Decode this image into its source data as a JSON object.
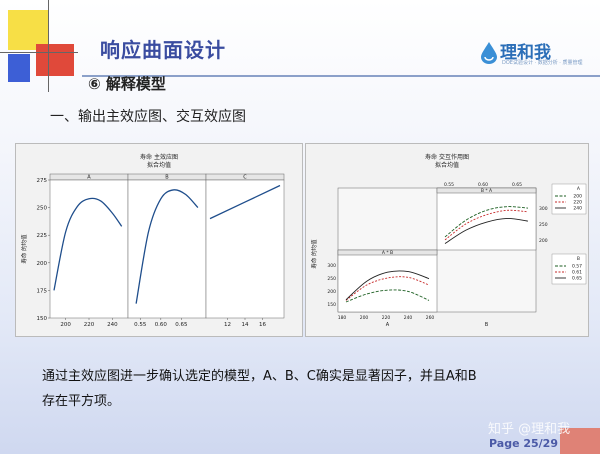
{
  "slide": {
    "title": "响应曲面设计",
    "section": "⑥  解释模型",
    "subtitle": "一、输出主效应图、交互效应图",
    "paragraph_line1": "通过主效应图进一步确认选定的模型，A、B、C确实是显著因子，并且A和B",
    "paragraph_line2": "存在平方项。",
    "watermark": "知乎 @理和我",
    "page": "Page 25/29"
  },
  "logo": {
    "text": "理和我",
    "sub": "DOE试验设计 · 数据分析 · 质量管理"
  },
  "colors": {
    "title": "#3a4ca0",
    "accent_yellow": "#f7df46",
    "accent_red": "#e0493a",
    "accent_blue": "#3d5fd6",
    "curve": "#1f4e8c"
  },
  "chart_data": [
    {
      "type": "line",
      "title": "寿命 主效应图",
      "subtitle": "拟合均值",
      "ylabel": "寿命 的均值",
      "ylim": [
        150,
        275
      ],
      "yticks": [
        150,
        175,
        200,
        225,
        250,
        275
      ],
      "panels": [
        {
          "name": "A",
          "xticks": [
            "200",
            "220",
            "240"
          ],
          "xlim": [
            190,
            250
          ],
          "x": [
            190,
            200,
            210,
            220,
            230,
            240,
            248
          ],
          "y": [
            175,
            228,
            251,
            258,
            256,
            245,
            233
          ]
        },
        {
          "name": "B",
          "xticks": [
            "0.55",
            "0.60",
            "0.65"
          ],
          "xlim": [
            0.53,
            0.7
          ],
          "x": [
            0.54,
            0.57,
            0.6,
            0.63,
            0.66,
            0.69
          ],
          "y": [
            163,
            228,
            258,
            266,
            262,
            250
          ]
        },
        {
          "name": "C",
          "xticks": [
            "12",
            "14",
            "16"
          ],
          "xlim": [
            10,
            18
          ],
          "x": [
            10,
            18
          ],
          "y": [
            240,
            270
          ]
        }
      ]
    },
    {
      "type": "line",
      "title": "寿命 交互作用图",
      "subtitle": "拟合均值",
      "ylabel": "寿命 的均值",
      "panels": [
        {
          "name": "B * A",
          "xticks": [
            "0.55",
            "0.60",
            "0.65"
          ],
          "yticks": [
            "200",
            "250",
            "300"
          ],
          "series": [
            {
              "name": "200",
              "values": [
                190,
                235,
                262,
                272,
                268
              ]
            },
            {
              "name": "220",
              "values": [
                182,
                225,
                250,
                262,
                258
              ]
            },
            {
              "name": "240",
              "values": [
                172,
                208,
                230,
                240,
                233
              ]
            }
          ]
        },
        {
          "name": "A * B",
          "xlabel": "A",
          "xticks": [
            "180",
            "200",
            "220",
            "240",
            "260"
          ],
          "yticks": [
            "150",
            "200",
            "250",
            "300"
          ],
          "series": [
            {
              "name": "0.57",
              "values": [
                175,
                200,
                212,
                208,
                180
              ]
            },
            {
              "name": "0.61",
              "values": [
                180,
                228,
                250,
                252,
                228
              ]
            },
            {
              "name": "0.65",
              "values": [
                182,
                240,
                268,
                270,
                248
              ]
            }
          ]
        }
      ],
      "legends": [
        {
          "title": "A",
          "entries": [
            "200",
            "220",
            "240"
          ]
        },
        {
          "title": "B",
          "entries": [
            "0.57",
            "0.61",
            "0.65"
          ]
        }
      ],
      "xlabel_bottom_right": "B"
    }
  ]
}
